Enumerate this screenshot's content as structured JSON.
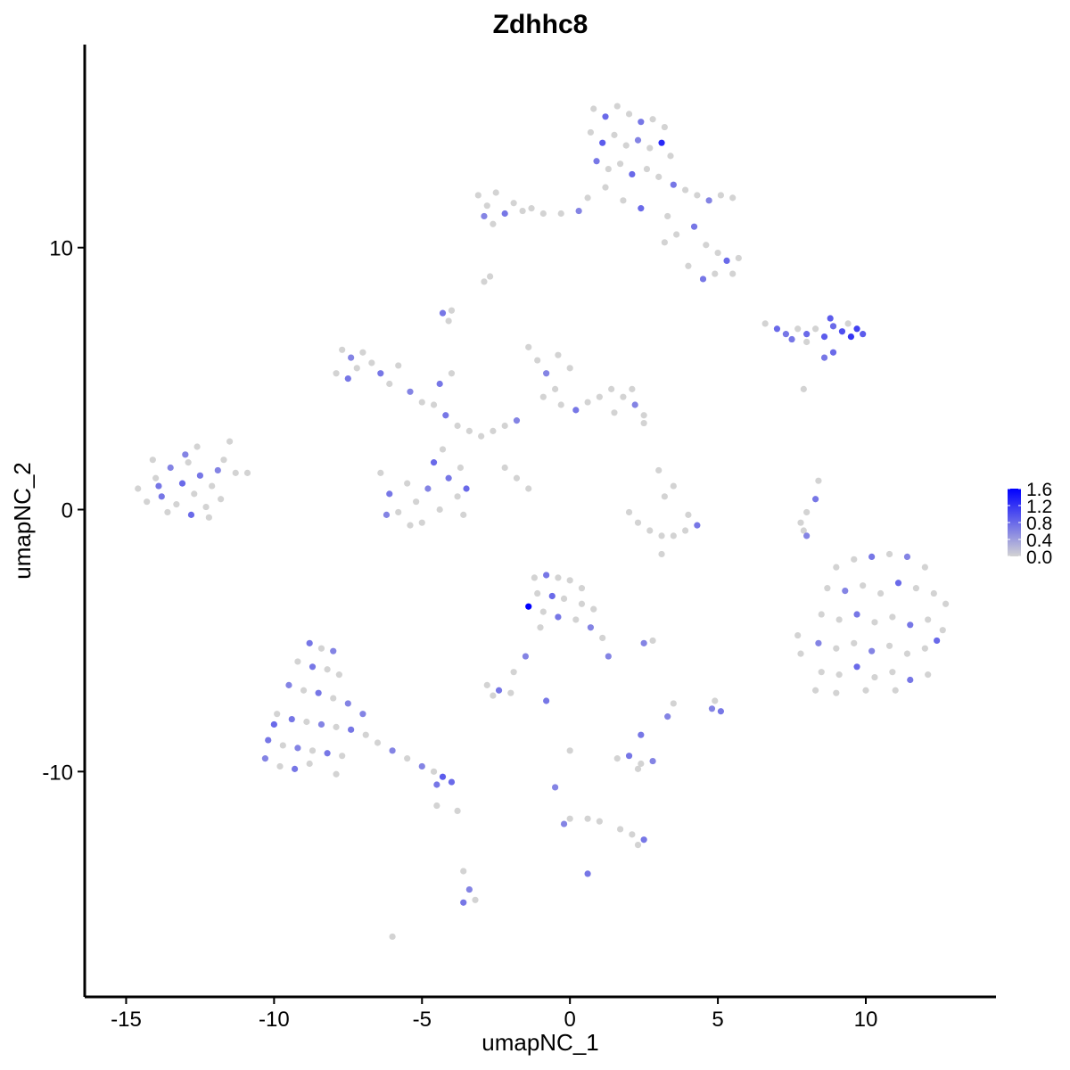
{
  "chart_data": {
    "type": "scatter",
    "title": "Zdhhc8",
    "xlabel": "umapNC_1",
    "ylabel": "umapNC_2",
    "xlim": [
      -16.4,
      14.4
    ],
    "ylim": [
      -18.6,
      17.75
    ],
    "xticks": [
      -15,
      -10,
      -5,
      0,
      5,
      10
    ],
    "yticks": [
      -10,
      0,
      10
    ],
    "xtick_labels": [
      "-15",
      "-10",
      "-5",
      "0",
      "5",
      "10"
    ],
    "ytick_labels": [
      "-10",
      "0",
      "10"
    ],
    "grid": false,
    "legend": {
      "placement": "right",
      "type": "colorbar",
      "range": [
        0,
        1.6
      ],
      "ticks": [
        0.0,
        0.4,
        0.8,
        1.2,
        1.6
      ],
      "tick_labels": [
        "0.0",
        "0.4",
        "0.8",
        "1.2",
        "1.6"
      ],
      "low_color": "#D3D3D3",
      "high_color": "#0000FF"
    },
    "point_format": [
      "umapNC_1",
      "umapNC_2",
      "expression"
    ],
    "points": [
      [
        -14.6,
        0.8,
        0
      ],
      [
        -14.3,
        0.3,
        0
      ],
      [
        -14.0,
        1.2,
        0
      ],
      [
        -13.8,
        0.5,
        0.7
      ],
      [
        -13.5,
        1.6,
        0.6
      ],
      [
        -13.3,
        0.2,
        0
      ],
      [
        -13.1,
        1.0,
        0.8
      ],
      [
        -12.9,
        1.8,
        0
      ],
      [
        -12.7,
        0.6,
        0
      ],
      [
        -12.5,
        1.3,
        0.7
      ],
      [
        -12.3,
        0.1,
        0
      ],
      [
        -12.1,
        0.9,
        0
      ],
      [
        -11.9,
        1.5,
        0.6
      ],
      [
        -11.7,
        1.9,
        0
      ],
      [
        -11.5,
        2.6,
        0
      ],
      [
        -11.3,
        1.4,
        0
      ],
      [
        -10.9,
        1.4,
        0
      ],
      [
        -13.6,
        -0.1,
        0
      ],
      [
        -12.8,
        -0.2,
        0.8
      ],
      [
        -14.1,
        1.9,
        0
      ],
      [
        -13.0,
        2.1,
        0.6
      ],
      [
        -12.2,
        -0.3,
        0
      ],
      [
        -11.8,
        0.4,
        0
      ],
      [
        -13.9,
        0.9,
        0.7
      ],
      [
        -12.6,
        2.4,
        0
      ],
      [
        0.8,
        15.3,
        0
      ],
      [
        1.2,
        15.0,
        0.8
      ],
      [
        1.6,
        15.4,
        0
      ],
      [
        2.0,
        15.1,
        0
      ],
      [
        2.4,
        14.8,
        0.7
      ],
      [
        2.8,
        14.9,
        0
      ],
      [
        3.2,
        14.6,
        0
      ],
      [
        0.7,
        14.4,
        0
      ],
      [
        1.1,
        14.0,
        0.9
      ],
      [
        1.5,
        14.3,
        0
      ],
      [
        1.9,
        13.9,
        0
      ],
      [
        2.3,
        14.1,
        0.6
      ],
      [
        2.7,
        13.8,
        0
      ],
      [
        3.1,
        14.0,
        1.3
      ],
      [
        3.4,
        13.5,
        0
      ],
      [
        0.9,
        13.3,
        0.7
      ],
      [
        1.3,
        13.0,
        0
      ],
      [
        1.7,
        13.2,
        0
      ],
      [
        2.1,
        12.8,
        0.8
      ],
      [
        2.6,
        13.0,
        0
      ],
      [
        3.0,
        12.7,
        0
      ],
      [
        3.5,
        12.4,
        0.7
      ],
      [
        3.9,
        12.2,
        0
      ],
      [
        4.3,
        12.0,
        0
      ],
      [
        4.7,
        11.8,
        0.6
      ],
      [
        5.1,
        12.0,
        0
      ],
      [
        5.5,
        11.9,
        0
      ],
      [
        1.2,
        12.3,
        0
      ],
      [
        0.6,
        11.9,
        0
      ],
      [
        0.3,
        11.4,
        0.6
      ],
      [
        -0.3,
        11.3,
        0
      ],
      [
        1.8,
        11.8,
        0
      ],
      [
        2.4,
        11.5,
        0.8
      ],
      [
        3.3,
        11.2,
        0
      ],
      [
        3.6,
        10.5,
        0
      ],
      [
        4.2,
        10.8,
        0.7
      ],
      [
        4.6,
        10.1,
        0
      ],
      [
        5.0,
        9.8,
        0
      ],
      [
        5.3,
        9.5,
        0.8
      ],
      [
        5.7,
        9.6,
        0
      ],
      [
        4.9,
        9.0,
        0
      ],
      [
        4.5,
        8.8,
        0.7
      ],
      [
        5.5,
        9.0,
        0
      ],
      [
        3.2,
        10.2,
        0
      ],
      [
        4.0,
        9.3,
        0
      ],
      [
        -3.1,
        12.0,
        0
      ],
      [
        -2.8,
        11.6,
        0
      ],
      [
        -2.5,
        12.1,
        0
      ],
      [
        -2.2,
        11.3,
        0.7
      ],
      [
        -1.9,
        11.7,
        0
      ],
      [
        -1.6,
        11.4,
        0
      ],
      [
        -1.3,
        11.5,
        0
      ],
      [
        -0.9,
        11.3,
        0
      ],
      [
        -2.9,
        11.2,
        0.6
      ],
      [
        -2.6,
        10.9,
        0
      ],
      [
        -2.7,
        8.9,
        0
      ],
      [
        -2.9,
        8.7,
        0
      ],
      [
        6.6,
        7.1,
        0
      ],
      [
        7.0,
        6.9,
        0.8
      ],
      [
        7.3,
        6.7,
        0.7
      ],
      [
        7.7,
        6.9,
        0
      ],
      [
        8.0,
        6.7,
        0.8
      ],
      [
        8.3,
        6.9,
        0
      ],
      [
        8.6,
        6.6,
        0.9
      ],
      [
        8.9,
        7.0,
        0.8
      ],
      [
        9.2,
        6.8,
        1.0
      ],
      [
        9.5,
        6.6,
        1.2
      ],
      [
        9.7,
        6.9,
        1.1
      ],
      [
        9.9,
        6.7,
        0.9
      ],
      [
        8.8,
        7.3,
        0.9
      ],
      [
        8.0,
        6.4,
        0
      ],
      [
        8.9,
        6.0,
        0.8
      ],
      [
        8.6,
        5.8,
        0.7
      ],
      [
        9.4,
        7.1,
        0
      ],
      [
        7.5,
        6.5,
        0.7
      ],
      [
        -7.7,
        6.1,
        0
      ],
      [
        -7.4,
        5.8,
        0.6
      ],
      [
        -7.2,
        5.4,
        0
      ],
      [
        -7.5,
        5.0,
        0.7
      ],
      [
        -7.0,
        6.0,
        0
      ],
      [
        -6.7,
        5.6,
        0
      ],
      [
        -6.4,
        5.2,
        0.7
      ],
      [
        -6.1,
        4.8,
        0
      ],
      [
        -5.8,
        5.5,
        0
      ],
      [
        -5.4,
        4.5,
        0.6
      ],
      [
        -5.0,
        4.1,
        0
      ],
      [
        -7.9,
        5.2,
        0
      ],
      [
        -4.6,
        4.0,
        0
      ],
      [
        -4.2,
        3.6,
        0.7
      ],
      [
        -3.8,
        3.2,
        0
      ],
      [
        -3.4,
        3.0,
        0
      ],
      [
        -3.0,
        2.8,
        0
      ],
      [
        -2.6,
        3.0,
        0
      ],
      [
        -2.2,
        3.2,
        0
      ],
      [
        -1.8,
        3.4,
        0.6
      ],
      [
        -4.0,
        5.2,
        0
      ],
      [
        -4.4,
        4.8,
        0.7
      ],
      [
        -1.4,
        6.2,
        0
      ],
      [
        -1.1,
        5.7,
        0
      ],
      [
        -0.8,
        5.2,
        0.6
      ],
      [
        -0.5,
        4.6,
        0
      ],
      [
        -0.9,
        4.3,
        0
      ],
      [
        -0.3,
        4.0,
        0
      ],
      [
        0.2,
        3.8,
        0.7
      ],
      [
        0.6,
        4.1,
        0
      ],
      [
        1.0,
        4.3,
        0
      ],
      [
        1.4,
        4.6,
        0
      ],
      [
        1.8,
        4.3,
        0
      ],
      [
        2.2,
        4.0,
        0.6
      ],
      [
        2.5,
        3.6,
        0
      ],
      [
        1.5,
        3.7,
        0
      ],
      [
        0.0,
        5.4,
        0
      ],
      [
        -0.4,
        5.9,
        0
      ],
      [
        2.1,
        4.6,
        0
      ],
      [
        -6.4,
        1.4,
        0
      ],
      [
        -6.1,
        0.6,
        0.7
      ],
      [
        -5.8,
        -0.1,
        0
      ],
      [
        -5.5,
        1.0,
        0
      ],
      [
        -5.2,
        0.3,
        0
      ],
      [
        -5.0,
        -0.5,
        0
      ],
      [
        -4.8,
        0.8,
        0.6
      ],
      [
        -4.4,
        0.0,
        0
      ],
      [
        -4.1,
        1.2,
        0.7
      ],
      [
        -3.8,
        0.5,
        0
      ],
      [
        -3.6,
        -0.2,
        0
      ],
      [
        -4.3,
        2.3,
        0
      ],
      [
        -4.6,
        1.8,
        0.8
      ],
      [
        -3.7,
        1.6,
        0
      ],
      [
        -3.5,
        0.8,
        0.8
      ],
      [
        -6.2,
        -0.2,
        0.6
      ],
      [
        -5.4,
        -0.6,
        0
      ],
      [
        -2.2,
        1.6,
        0
      ],
      [
        -1.8,
        1.2,
        0
      ],
      [
        -1.4,
        0.8,
        0
      ],
      [
        2.0,
        -0.1,
        0
      ],
      [
        2.3,
        -0.5,
        0
      ],
      [
        2.7,
        -0.8,
        0
      ],
      [
        3.1,
        -1.0,
        0
      ],
      [
        3.5,
        -1.0,
        0
      ],
      [
        3.9,
        -0.8,
        0
      ],
      [
        4.3,
        -0.6,
        0.7
      ],
      [
        3.2,
        0.5,
        0
      ],
      [
        3.5,
        0.9,
        0
      ],
      [
        3.0,
        1.5,
        0
      ],
      [
        4.0,
        -0.2,
        0
      ],
      [
        9.0,
        -2.2,
        0
      ],
      [
        9.6,
        -1.9,
        0
      ],
      [
        10.2,
        -1.8,
        0.7
      ],
      [
        10.8,
        -1.7,
        0
      ],
      [
        11.4,
        -1.8,
        0.6
      ],
      [
        12.0,
        -2.2,
        0
      ],
      [
        8.7,
        -3.0,
        0
      ],
      [
        9.3,
        -3.1,
        0.6
      ],
      [
        9.9,
        -2.9,
        0
      ],
      [
        10.5,
        -3.2,
        0
      ],
      [
        11.1,
        -2.8,
        0.8
      ],
      [
        11.7,
        -3.0,
        0
      ],
      [
        12.3,
        -3.2,
        0
      ],
      [
        12.7,
        -3.6,
        0
      ],
      [
        8.5,
        -4.0,
        0
      ],
      [
        9.1,
        -4.2,
        0
      ],
      [
        9.7,
        -4.0,
        0.7
      ],
      [
        10.3,
        -4.3,
        0
      ],
      [
        10.9,
        -4.1,
        0
      ],
      [
        11.5,
        -4.4,
        0.7
      ],
      [
        12.1,
        -4.2,
        0
      ],
      [
        12.6,
        -4.6,
        0
      ],
      [
        8.4,
        -5.1,
        0.6
      ],
      [
        9.0,
        -5.3,
        0
      ],
      [
        9.6,
        -5.1,
        0
      ],
      [
        10.2,
        -5.4,
        0.6
      ],
      [
        10.8,
        -5.2,
        0
      ],
      [
        11.4,
        -5.5,
        0
      ],
      [
        12.0,
        -5.3,
        0
      ],
      [
        12.4,
        -5.0,
        0.8
      ],
      [
        8.5,
        -6.2,
        0
      ],
      [
        9.1,
        -6.3,
        0
      ],
      [
        9.7,
        -6.0,
        0.8
      ],
      [
        10.3,
        -6.4,
        0
      ],
      [
        10.9,
        -6.2,
        0
      ],
      [
        11.5,
        -6.5,
        0.7
      ],
      [
        12.1,
        -6.3,
        0
      ],
      [
        8.3,
        -6.9,
        0
      ],
      [
        9.0,
        -7.0,
        0
      ],
      [
        10.0,
        -6.9,
        0
      ],
      [
        11.0,
        -6.9,
        0
      ],
      [
        7.7,
        -4.8,
        0
      ],
      [
        7.8,
        -5.5,
        0
      ],
      [
        -8.8,
        -5.1,
        0.7
      ],
      [
        -8.4,
        -5.3,
        0
      ],
      [
        -8.0,
        -5.4,
        0.6
      ],
      [
        -9.2,
        -5.8,
        0
      ],
      [
        -8.7,
        -6.0,
        0.7
      ],
      [
        -8.2,
        -6.1,
        0
      ],
      [
        -7.8,
        -6.3,
        0
      ],
      [
        -9.5,
        -6.7,
        0.6
      ],
      [
        -9.0,
        -6.9,
        0
      ],
      [
        -8.5,
        -7.0,
        0.7
      ],
      [
        -8.0,
        -7.2,
        0
      ],
      [
        -7.5,
        -7.4,
        0.6
      ],
      [
        -9.9,
        -7.8,
        0
      ],
      [
        -9.4,
        -8.0,
        0.7
      ],
      [
        -8.9,
        -8.1,
        0
      ],
      [
        -8.4,
        -8.2,
        0.6
      ],
      [
        -7.9,
        -8.3,
        0
      ],
      [
        -7.4,
        -8.4,
        0.7
      ],
      [
        -6.9,
        -8.6,
        0
      ],
      [
        -10.2,
        -8.8,
        0.7
      ],
      [
        -9.7,
        -9.0,
        0
      ],
      [
        -9.2,
        -9.1,
        0.6
      ],
      [
        -8.7,
        -9.2,
        0
      ],
      [
        -8.2,
        -9.3,
        0.7
      ],
      [
        -7.7,
        -9.4,
        0
      ],
      [
        -10.3,
        -9.5,
        0.6
      ],
      [
        -9.8,
        -9.8,
        0
      ],
      [
        -9.3,
        -9.9,
        0.7
      ],
      [
        -8.8,
        -9.7,
        0
      ],
      [
        -6.5,
        -8.9,
        0
      ],
      [
        -6.0,
        -9.2,
        0.6
      ],
      [
        -5.5,
        -9.5,
        0
      ],
      [
        -5.0,
        -9.8,
        0.6
      ],
      [
        -4.6,
        -10.0,
        0
      ],
      [
        -4.3,
        -10.2,
        0.9
      ],
      [
        -4.0,
        -10.4,
        0.8
      ],
      [
        -4.5,
        -10.5,
        0.7
      ],
      [
        -10.0,
        -8.2,
        0.8
      ],
      [
        -7.0,
        -7.8,
        0.6
      ],
      [
        -7.9,
        -10.1,
        0
      ],
      [
        -1.2,
        -2.6,
        0
      ],
      [
        -0.8,
        -2.5,
        0.7
      ],
      [
        -0.4,
        -2.6,
        0
      ],
      [
        0.0,
        -2.7,
        0
      ],
      [
        0.4,
        -3.0,
        0
      ],
      [
        -1.1,
        -3.2,
        0
      ],
      [
        -0.6,
        -3.3,
        0.8
      ],
      [
        -0.2,
        -3.4,
        0
      ],
      [
        0.4,
        -3.6,
        0
      ],
      [
        0.8,
        -3.8,
        0
      ],
      [
        -1.4,
        -3.7,
        1.6
      ],
      [
        -0.9,
        -3.9,
        0
      ],
      [
        -0.4,
        -4.1,
        0.7
      ],
      [
        0.2,
        -4.2,
        0
      ],
      [
        0.7,
        -4.5,
        0.6
      ],
      [
        1.1,
        -4.9,
        0
      ],
      [
        1.3,
        -5.6,
        0.6
      ],
      [
        -1.0,
        -4.5,
        0
      ],
      [
        -2.8,
        -6.7,
        0
      ],
      [
        -2.4,
        -6.9,
        0.7
      ],
      [
        -2.0,
        -7.0,
        0
      ],
      [
        -2.6,
        -7.1,
        0
      ],
      [
        -1.5,
        -5.6,
        0.6
      ],
      [
        -1.9,
        -6.2,
        0
      ],
      [
        1.6,
        -9.5,
        0
      ],
      [
        2.0,
        -9.4,
        0.7
      ],
      [
        2.4,
        -9.7,
        0
      ],
      [
        2.8,
        -9.6,
        0.6
      ],
      [
        2.3,
        -9.9,
        0
      ],
      [
        2.4,
        -8.6,
        0.7
      ],
      [
        1.7,
        -12.2,
        0
      ],
      [
        2.1,
        -12.4,
        0
      ],
      [
        2.5,
        -12.6,
        0.7
      ],
      [
        2.3,
        -12.8,
        0
      ],
      [
        -3.6,
        -13.8,
        0
      ],
      [
        -3.4,
        -14.5,
        0.6
      ],
      [
        -3.6,
        -15.0,
        0.7
      ],
      [
        -3.2,
        -14.9,
        0
      ],
      [
        -6.0,
        -16.3,
        0
      ],
      [
        4.9,
        -7.3,
        0
      ],
      [
        5.1,
        -7.7,
        0.7
      ],
      [
        4.8,
        -7.6,
        0.6
      ],
      [
        3.5,
        -7.4,
        0
      ],
      [
        3.3,
        -7.9,
        0.6
      ],
      [
        2.8,
        -5.0,
        0
      ],
      [
        2.5,
        -5.1,
        0.6
      ],
      [
        0.0,
        -9.2,
        0
      ],
      [
        -0.5,
        -10.6,
        0.6
      ],
      [
        0.0,
        -11.8,
        0
      ],
      [
        -0.2,
        -12.0,
        0.6
      ],
      [
        0.6,
        -11.8,
        0
      ],
      [
        1.0,
        -11.9,
        0
      ],
      [
        0.6,
        -13.9,
        0.7
      ],
      [
        -0.8,
        -7.3,
        0.7
      ],
      [
        -4.3,
        7.5,
        0.7
      ],
      [
        -4.1,
        7.2,
        0
      ],
      [
        -4.0,
        7.6,
        0
      ],
      [
        8.3,
        0.4,
        0.7
      ],
      [
        8.0,
        -0.1,
        0
      ],
      [
        7.9,
        -0.8,
        0
      ],
      [
        8.4,
        1.1,
        0
      ],
      [
        7.8,
        -0.5,
        0
      ],
      [
        8.0,
        -1.0,
        0.6
      ],
      [
        3.1,
        -1.7,
        0
      ],
      [
        -3.8,
        -11.5,
        0
      ],
      [
        -4.5,
        -11.3,
        0
      ],
      [
        7.9,
        4.6,
        0
      ],
      [
        2.5,
        3.3,
        0
      ]
    ]
  }
}
